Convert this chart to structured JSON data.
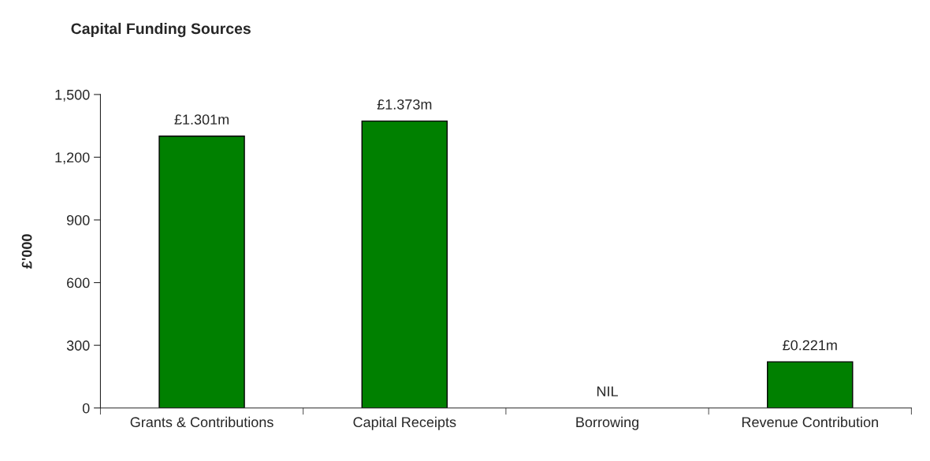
{
  "chart_data": {
    "type": "bar",
    "title": "Capital Funding Sources",
    "ylabel": "£'000",
    "categories": [
      "Grants & Contributions",
      "Capital Receipts",
      "Borrowing",
      "Revenue Contribution"
    ],
    "values": [
      1301,
      1373,
      0,
      221
    ],
    "annotations": [
      {
        "text": "£1.301m",
        "x": "Grants & Contributions",
        "y": 1301
      },
      {
        "text": "£1.373m",
        "x": "Capital Receipts",
        "y": 1373
      },
      {
        "text": "NIL",
        "x": "Borrowing",
        "y": 0
      },
      {
        "text": "£0.221m",
        "x": "Revenue Contribution",
        "y": 221
      }
    ],
    "color": "#008000",
    "ylim": [
      0,
      1500
    ],
    "yticks": [
      {
        "value": 0,
        "label": "0"
      },
      {
        "value": 300,
        "label": "300"
      },
      {
        "value": 600,
        "label": "600"
      },
      {
        "value": 900,
        "label": "900"
      },
      {
        "value": 1200,
        "label": "1,200"
      },
      {
        "value": 1500,
        "label": "1,500"
      }
    ],
    "grid": false,
    "legend": false
  }
}
